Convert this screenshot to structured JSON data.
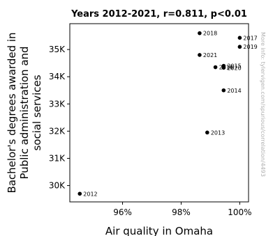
{
  "chart_data": {
    "type": "scatter",
    "title": "Years 2012-2021, r=0.811, p<0.01",
    "xlabel": "Air quality in Omaha",
    "ylabel_lines": [
      "Bachelor's degrees awarded in",
      "Public administration and",
      "social services"
    ],
    "xlim": [
      94.2,
      100.3
    ],
    "ylim": [
      29400,
      35950
    ],
    "x_ticks": [
      {
        "value": 96,
        "label": "96%"
      },
      {
        "value": 98,
        "label": "98%"
      },
      {
        "value": 100,
        "label": "100%"
      }
    ],
    "y_ticks": [
      {
        "value": 30000,
        "label": "30K"
      },
      {
        "value": 31000,
        "label": "31K"
      },
      {
        "value": 32000,
        "label": "32K"
      },
      {
        "value": 33000,
        "label": "33K"
      },
      {
        "value": 34000,
        "label": "34K"
      },
      {
        "value": 35000,
        "label": "35K"
      }
    ],
    "points": [
      {
        "label": "2012",
        "x": 94.54,
        "y": 29700
      },
      {
        "label": "2013",
        "x": 98.89,
        "y": 31950
      },
      {
        "label": "2014",
        "x": 99.45,
        "y": 33500
      },
      {
        "label": "2015",
        "x": 99.45,
        "y": 34400
      },
      {
        "label": "2016",
        "x": 99.17,
        "y": 34350
      },
      {
        "label": "2017",
        "x": 100.0,
        "y": 35430
      },
      {
        "label": "2018",
        "x": 98.63,
        "y": 35600
      },
      {
        "label": "2019",
        "x": 100.0,
        "y": 35100
      },
      {
        "label": "2020",
        "x": 99.45,
        "y": 34330
      },
      {
        "label": "2021",
        "x": 98.63,
        "y": 34800
      }
    ],
    "watermark": "More info: tylervigen.com/spurious/correlation/4493",
    "marker_color": "#000000",
    "grid": false
  }
}
